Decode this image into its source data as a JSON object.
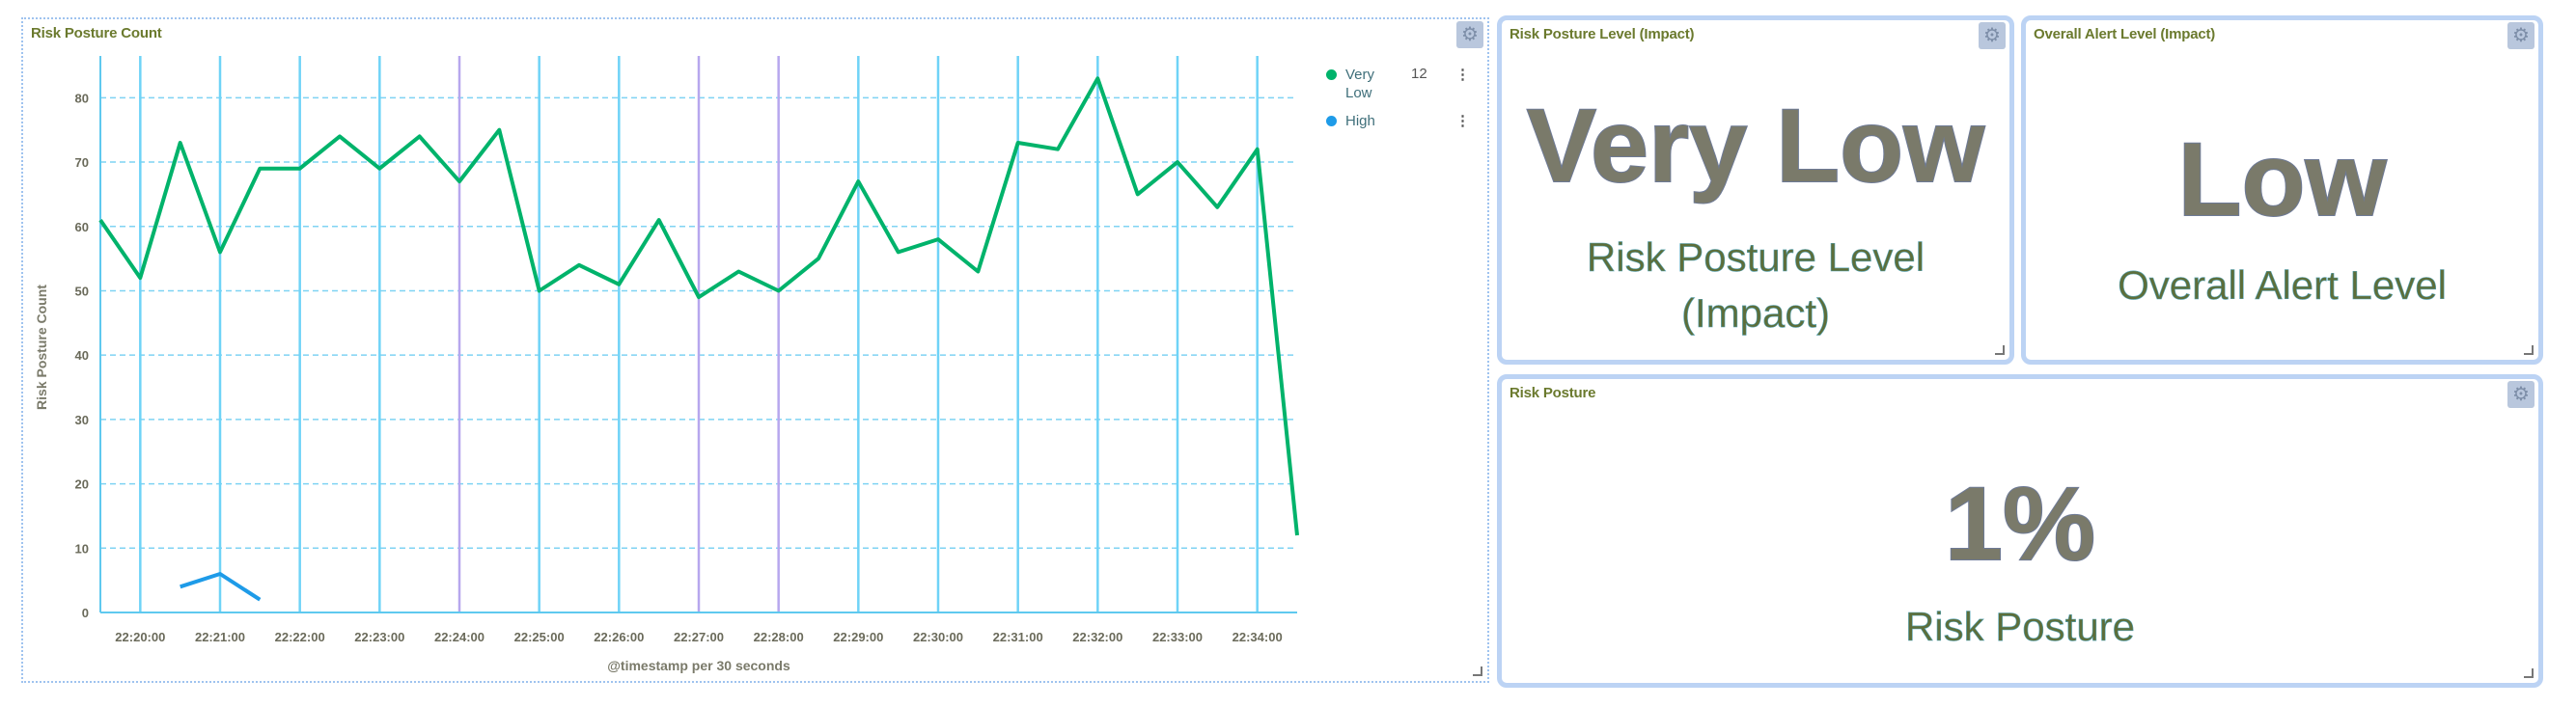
{
  "chart_panel": {
    "title": "Risk Posture Count",
    "menu_icon": "kebab-icon"
  },
  "chart_data": {
    "type": "line",
    "title": "",
    "xlabel": "@timestamp per 30 seconds",
    "ylabel": "Risk Posture Count",
    "ylim": [
      0,
      85
    ],
    "yticks": [
      0,
      10,
      20,
      30,
      40,
      50,
      60,
      70,
      80
    ],
    "x": [
      "22:19:30",
      "22:20:00",
      "22:20:30",
      "22:21:00",
      "22:21:30",
      "22:22:00",
      "22:22:30",
      "22:23:00",
      "22:23:30",
      "22:24:00",
      "22:24:30",
      "22:25:00",
      "22:25:30",
      "22:26:00",
      "22:26:30",
      "22:27:00",
      "22:27:30",
      "22:28:00",
      "22:28:30",
      "22:29:00",
      "22:29:30",
      "22:30:00",
      "22:30:30",
      "22:31:00",
      "22:31:30",
      "22:32:00",
      "22:32:30",
      "22:33:00",
      "22:33:30",
      "22:34:00",
      "22:34:30"
    ],
    "xtick_labels": [
      "22:20:00",
      "22:21:00",
      "22:22:00",
      "22:23:00",
      "22:24:00",
      "22:25:00",
      "22:26:00",
      "22:27:00",
      "22:28:00",
      "22:29:00",
      "22:30:00",
      "22:31:00",
      "22:32:00",
      "22:33:00",
      "22:34:00"
    ],
    "series": [
      {
        "name": "Very Low",
        "color": "#00b36b",
        "values": [
          61,
          52,
          73,
          56,
          69,
          69,
          74,
          69,
          74,
          67,
          75,
          50,
          54,
          51,
          61,
          49,
          53,
          50,
          55,
          67,
          56,
          58,
          53,
          73,
          72,
          83,
          65,
          70,
          63,
          72,
          12
        ]
      },
      {
        "name": "High",
        "color": "#1e9be8",
        "values": [
          null,
          null,
          4,
          6,
          2,
          null,
          null,
          null,
          null,
          null,
          null,
          null,
          null,
          null,
          null,
          null,
          null,
          null,
          null,
          null,
          null,
          null,
          null,
          null,
          null,
          null,
          null,
          null,
          null,
          null,
          null
        ]
      }
    ],
    "legend": {
      "position": "right",
      "very_low_value": "12"
    },
    "grid": true
  },
  "legend": {
    "very_low_label": "Very Low",
    "very_low_value": "12",
    "high_label": "High",
    "high_value": ""
  },
  "panel_level": {
    "title": "Risk Posture Level (Impact)",
    "value": "Very Low",
    "label_line1": "Risk Posture Level",
    "label_line2": "(Impact)"
  },
  "panel_alert": {
    "title": "Overall Alert Level (Impact)",
    "value": "Low",
    "label": "Overall Alert Level"
  },
  "panel_posture": {
    "title": "Risk Posture",
    "value": "1%",
    "label": "Risk Posture"
  },
  "colors": {
    "very_low": "#00b36b",
    "high": "#1e9be8",
    "vertical_line": "#6fd3f7",
    "vertical_line_alt": "#b7a7ee",
    "panel_border": "#bcd3f4"
  }
}
